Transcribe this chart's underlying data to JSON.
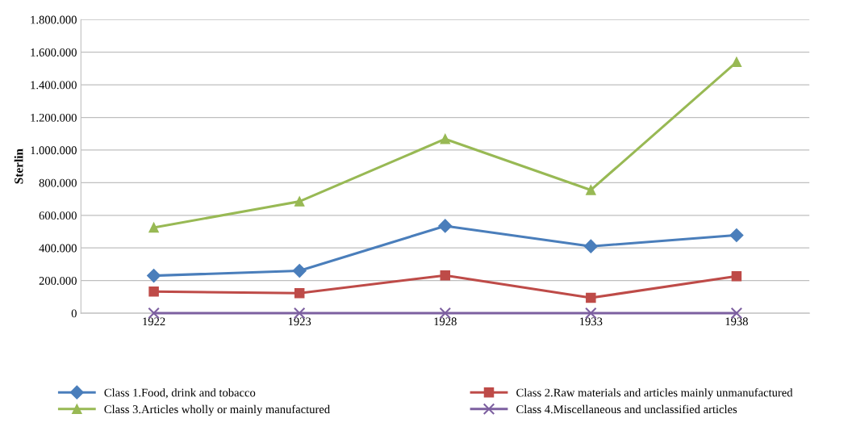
{
  "chart_data": {
    "type": "line",
    "ylabel": "Sterlin",
    "categories": [
      "1922",
      "1923",
      "1928",
      "1933",
      "1938"
    ],
    "series": [
      {
        "name": "Class 1.Food, drink and tobacco",
        "color": "#4a7ebb",
        "marker": "diamond",
        "values": [
          230000,
          260000,
          535000,
          410000,
          478000
        ]
      },
      {
        "name": "Class 2.Raw materials and articles mainly unmanufactured",
        "color": "#be4b48",
        "marker": "square",
        "values": [
          133000,
          123000,
          232000,
          94000,
          227000
        ]
      },
      {
        "name": "Class 3.Articles wholly or mainly manufactured",
        "color": "#98b954",
        "marker": "triangle",
        "values": [
          525000,
          685000,
          1068000,
          755000,
          1540000
        ]
      },
      {
        "name": "Class 4.Miscellaneous and unclassified articles",
        "color": "#7d60a0",
        "marker": "cross",
        "values": [
          0,
          0,
          0,
          0,
          0
        ]
      }
    ],
    "ylim": [
      0,
      1800000
    ],
    "yticks": [
      0,
      {
        "value": 200000,
        "label": "200.000"
      },
      {
        "value": 400000,
        "label": "400.000"
      },
      {
        "value": 600000,
        "label": "600.000"
      },
      {
        "value": 800000,
        "label": "800.000"
      },
      {
        "value": 1000000,
        "label": "1.000.000"
      },
      {
        "value": 1200000,
        "label": "1.200.000"
      },
      {
        "value": 1400000,
        "label": "1.400.000"
      },
      {
        "value": 1600000,
        "label": "1.600.000"
      },
      {
        "value": 1800000,
        "label": "1.800.000"
      }
    ],
    "grid": "y",
    "legend": "bottom",
    "line_style": "solid"
  }
}
